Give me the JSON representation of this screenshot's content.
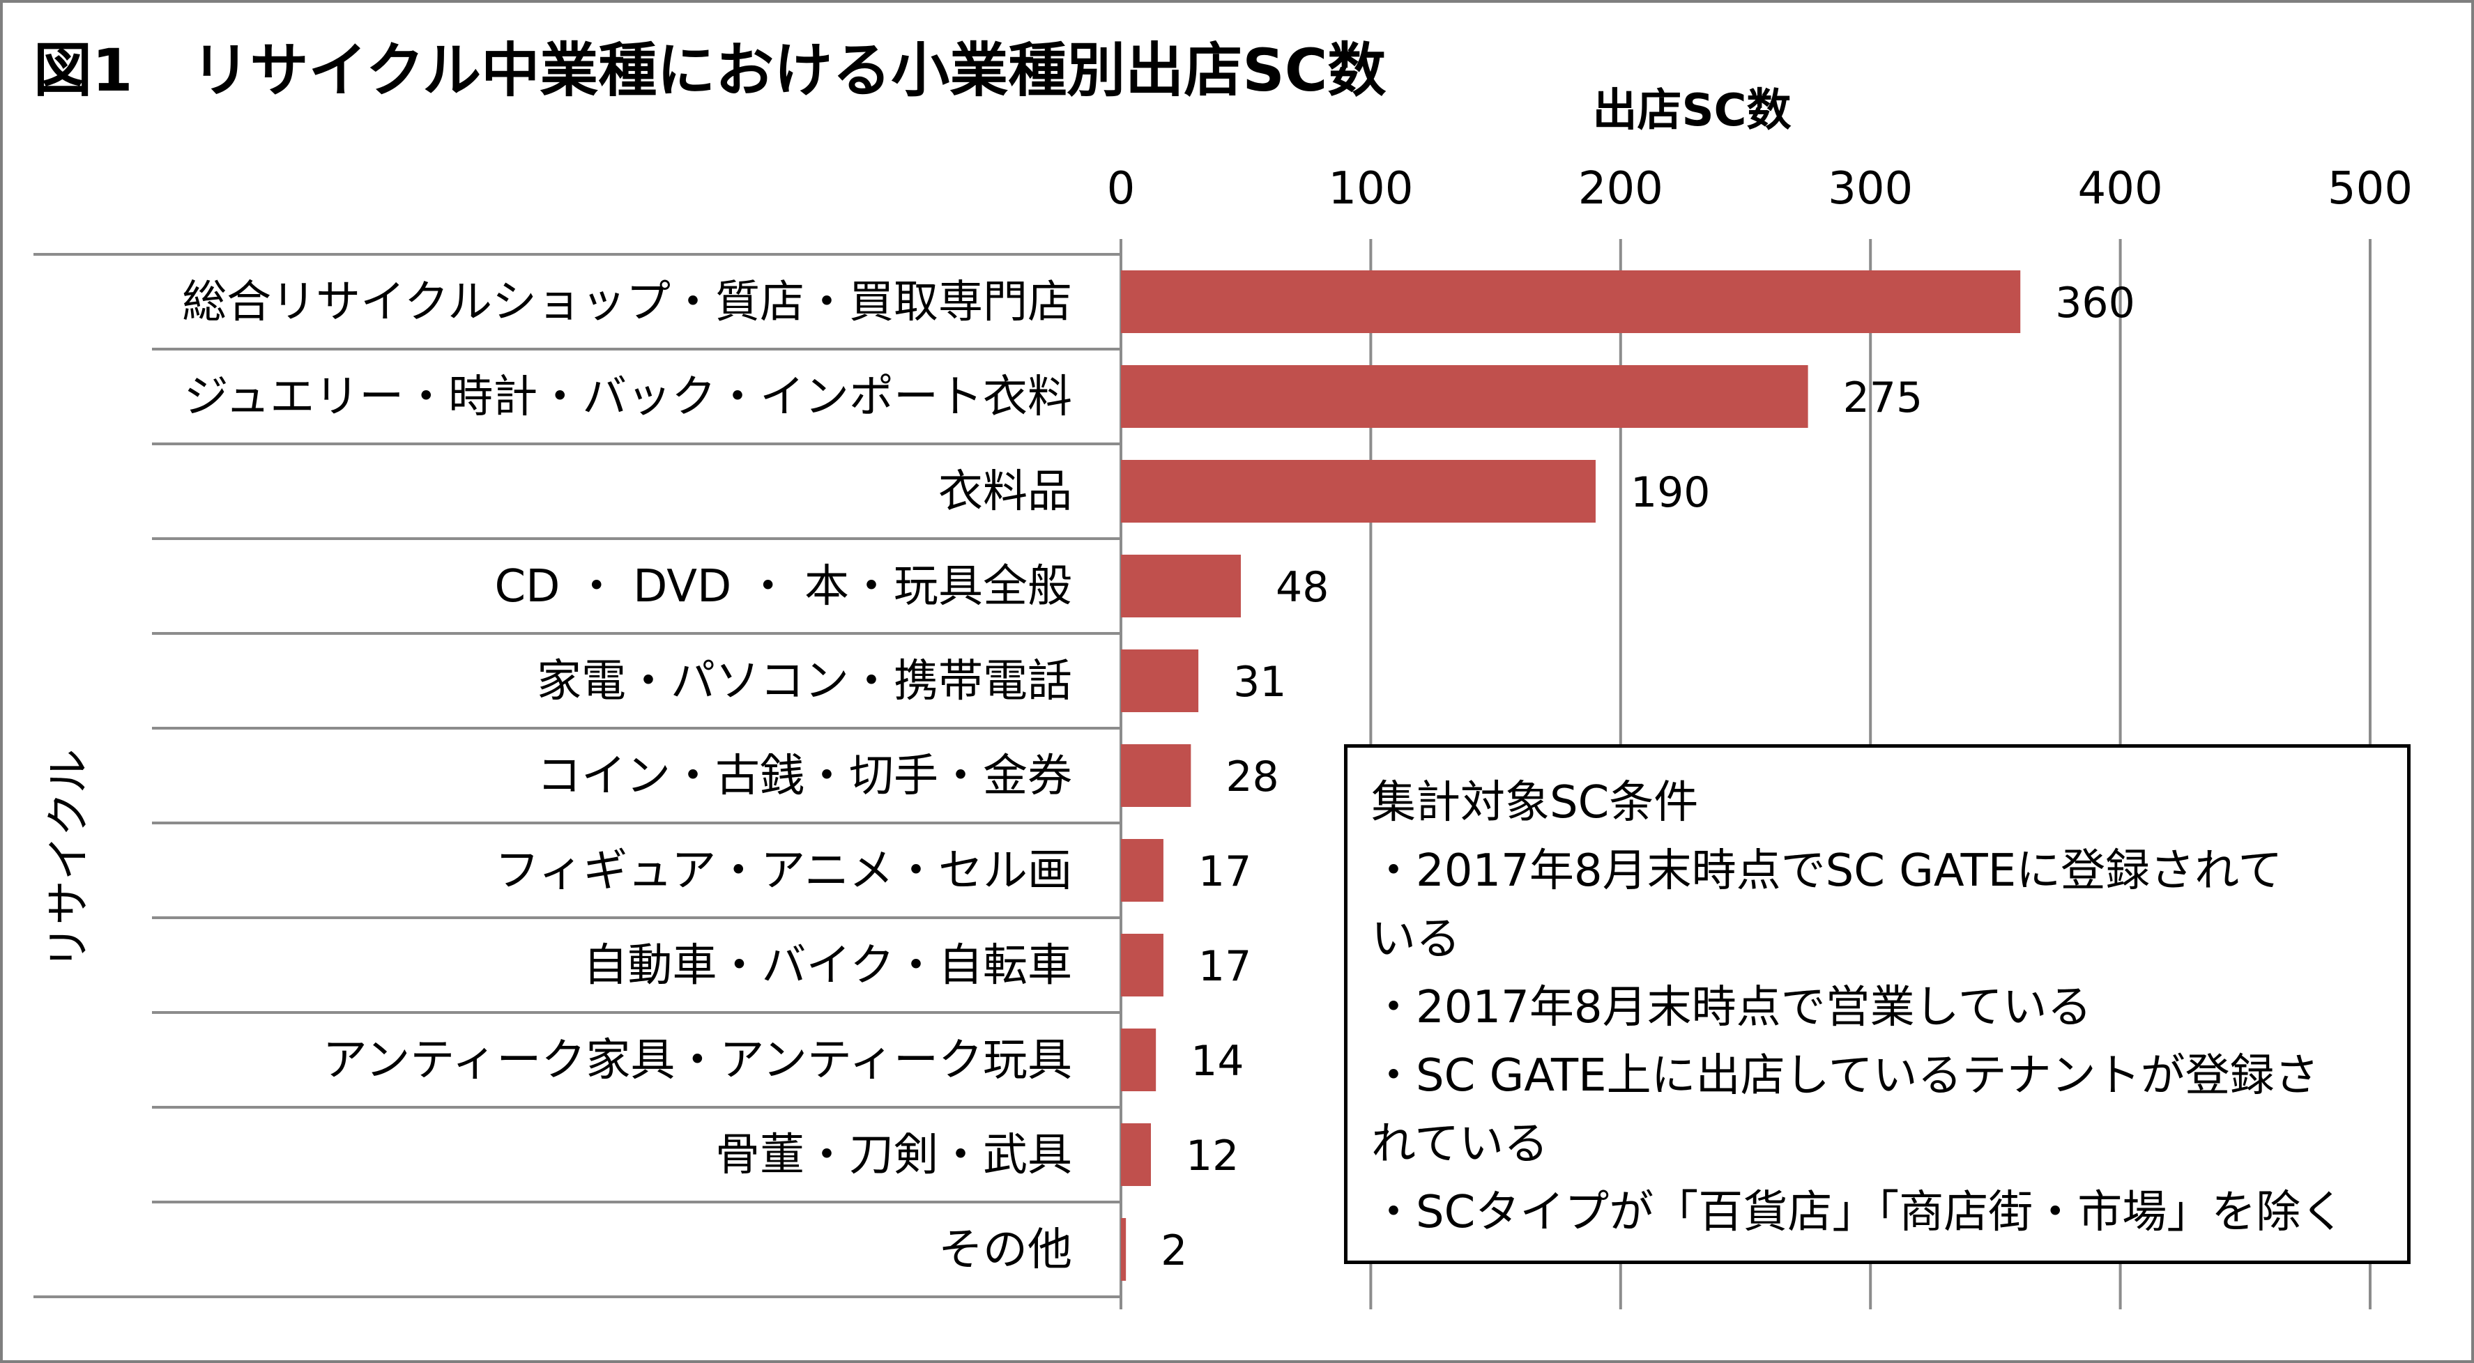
{
  "title": "図1　リサイクル中業種における小業種別出店SC数",
  "chart_data": {
    "type": "bar",
    "orientation": "horizontal",
    "title": "図1　リサイクル中業種における小業種別出店SC数",
    "xlabel": "出店SC数",
    "group_label": "リサイクル",
    "xlim": [
      0,
      500
    ],
    "xticks": [
      0,
      100,
      200,
      300,
      400,
      500
    ],
    "categories": [
      "総合リサイクルショップ・質店・買取専門店",
      "ジュエリー・時計・バック・インポート衣料",
      "衣料品",
      "CD ・ DVD ・ 本・玩具全般",
      "家電・パソコン・携帯電話",
      "コイン・古銭・切手・金券",
      "フィギュア・アニメ・セル画",
      "自動車・バイク・自転車",
      "アンティーク家具・アンティーク玩具",
      "骨董・刀剣・武具",
      "その他"
    ],
    "values": [
      360,
      275,
      190,
      48,
      31,
      28,
      17,
      17,
      14,
      12,
      2
    ],
    "bar_color": "#c0504d",
    "grid": true,
    "legend": "none"
  },
  "note": {
    "heading": "集計対象SC条件",
    "lines": [
      "・2017年8月末時点でSC GATEに登録されて",
      "いる",
      "・2017年8月末時点で営業している",
      "・SC GATE上に出店しているテナントが登録さ",
      "れている",
      "・SCタイプが「百貨店」「商店街・市場」を除く"
    ]
  }
}
